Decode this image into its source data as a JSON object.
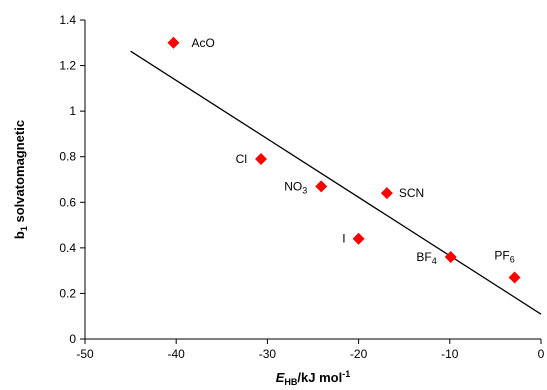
{
  "chart_data": {
    "type": "scatter",
    "title": "",
    "xlabel": {
      "main": "E",
      "sub": "HB",
      "rest": "/kJ mol",
      "sup": "-1"
    },
    "ylabel": {
      "main": "b",
      "sub": "1",
      "rest": " solvatomagnetic"
    },
    "xlim": [
      -50,
      0
    ],
    "ylim": [
      0,
      1.4
    ],
    "xticks": [
      -50,
      -40,
      -30,
      -20,
      -10,
      0
    ],
    "yticks": [
      0,
      0.2,
      0.4,
      0.6,
      0.8,
      1,
      1.2,
      1.4
    ],
    "xtick_labels": [
      "-50",
      "-40",
      "-30",
      "-20",
      "-10",
      "0"
    ],
    "ytick_labels": [
      "0",
      "0.2",
      "0.4",
      "0.6",
      "0.8",
      "1",
      "1.2",
      "1.4"
    ],
    "marker_color": "#ff0000",
    "line_color": "#000000",
    "points": [
      {
        "x": -40.3,
        "y": 1.3,
        "label": {
          "main": "AcO",
          "sub": ""
        }
      },
      {
        "x": -30.7,
        "y": 0.79,
        "label": {
          "main": "Cl",
          "sub": ""
        }
      },
      {
        "x": -24.1,
        "y": 0.67,
        "label": {
          "main": "NO",
          "sub": "3"
        }
      },
      {
        "x": -16.9,
        "y": 0.64,
        "label": {
          "main": "SCN",
          "sub": ""
        }
      },
      {
        "x": -20.0,
        "y": 0.44,
        "label": {
          "main": "I",
          "sub": ""
        }
      },
      {
        "x": -9.9,
        "y": 0.36,
        "label": {
          "main": "BF",
          "sub": "4"
        }
      },
      {
        "x": -2.9,
        "y": 0.27,
        "label": {
          "main": "PF",
          "sub": "6"
        }
      }
    ],
    "trendline": {
      "x": [
        -45,
        0
      ],
      "y": [
        1.263,
        0.109
      ]
    }
  }
}
